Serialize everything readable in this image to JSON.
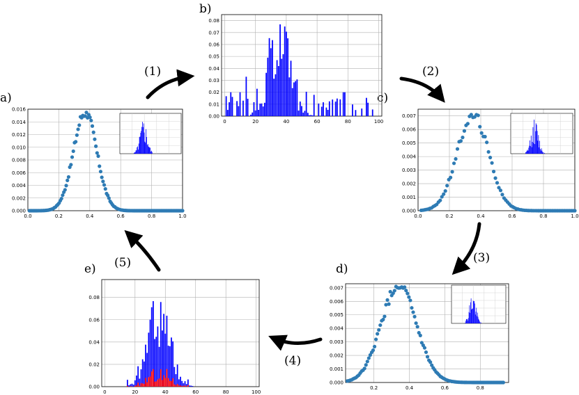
{
  "labels": {
    "a": "a)",
    "b": "b)",
    "c": "c)",
    "d": "d)",
    "e": "e)",
    "s1": "(1)",
    "s2": "(2)",
    "s3": "(3)",
    "s4": "(4)",
    "s5": "(5)"
  },
  "colors": {
    "scatter": "#2e7bb4",
    "bars": "#0000ff",
    "bars_red": "#ff0000"
  },
  "chart_data": [
    {
      "id": "a",
      "type": "scatter",
      "xlim": [
        0,
        1
      ],
      "ylim": [
        0,
        0.016
      ],
      "xticks": [
        "0.0",
        "0.2",
        "0.4",
        "0.6",
        "0.8",
        "1.0"
      ],
      "yticks": [
        "0.000",
        "0.002",
        "0.004",
        "0.006",
        "0.008",
        "0.010",
        "0.012",
        "0.014",
        "0.016"
      ],
      "curve": {
        "mu": 0.37,
        "sigma": 0.075,
        "peak": 0.0155,
        "x_from": 0.01,
        "x_to": 1.0,
        "n": 130
      },
      "inset": true
    },
    {
      "id": "b",
      "type": "bar",
      "xlim": [
        -2,
        102
      ],
      "ylim": [
        0,
        0.085
      ],
      "xticks": [
        "0",
        "20",
        "40",
        "60",
        "80",
        "100"
      ],
      "yticks": [
        "0.00",
        "0.01",
        "0.02",
        "0.03",
        "0.04",
        "0.05",
        "0.06",
        "0.07",
        "0.08"
      ]
    },
    {
      "id": "c",
      "type": "scatter",
      "xlim": [
        0,
        1
      ],
      "ylim": [
        0,
        0.0075
      ],
      "xticks": [
        "0.0",
        "0.2",
        "0.4",
        "0.6",
        "0.8",
        "1.0"
      ],
      "yticks": [
        "0.000",
        "0.001",
        "0.002",
        "0.003",
        "0.004",
        "0.005",
        "0.006",
        "0.007"
      ],
      "curve": {
        "mu": 0.35,
        "sigma": 0.1,
        "peak": 0.0071,
        "x_from": 0.02,
        "x_to": 1.0,
        "n": 90
      },
      "inset": true
    },
    {
      "id": "d",
      "type": "scatter",
      "xlim": [
        0.04,
        0.96
      ],
      "ylim": [
        0,
        0.0073
      ],
      "xticks": [
        "0.2",
        "0.4",
        "0.6",
        "0.8"
      ],
      "yticks": [
        "0.000",
        "0.001",
        "0.002",
        "0.003",
        "0.004",
        "0.005",
        "0.006",
        "0.007"
      ],
      "curve": {
        "mu": 0.34,
        "sigma": 0.1,
        "peak": 0.0071,
        "x_from": 0.05,
        "x_to": 0.93,
        "n": 110
      },
      "inset": true
    },
    {
      "id": "e",
      "type": "bar",
      "xlim": [
        -2,
        102
      ],
      "ylim": [
        0,
        0.096
      ],
      "xticks": [
        "0",
        "20",
        "40",
        "60",
        "80",
        "100"
      ],
      "yticks": [
        "0.00",
        "0.02",
        "0.04",
        "0.06",
        "0.08"
      ]
    }
  ]
}
